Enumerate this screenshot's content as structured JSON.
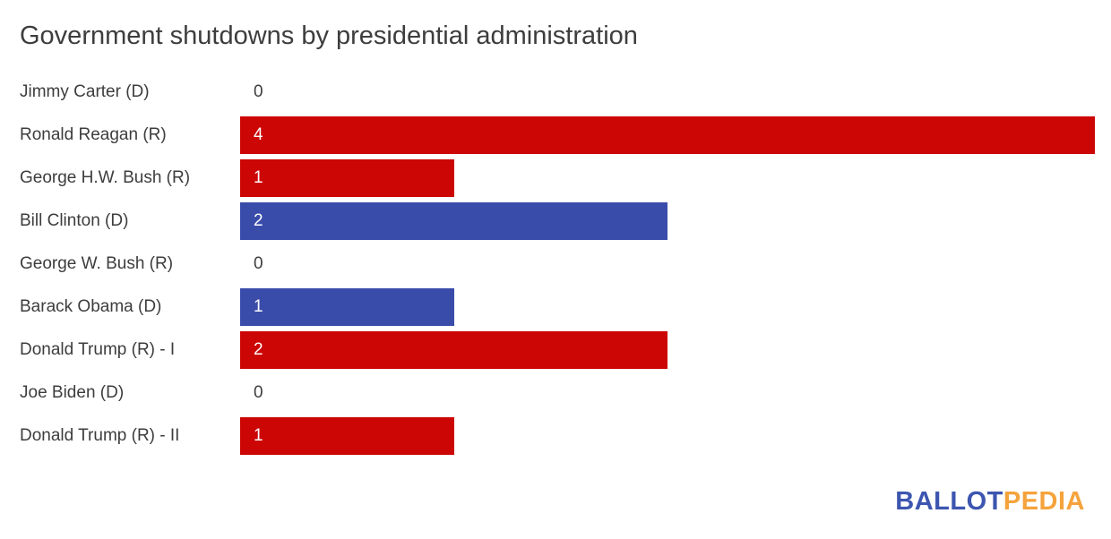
{
  "title": "Government shutdowns by presidential administration",
  "chart_data": {
    "type": "bar",
    "orientation": "horizontal",
    "title": "Government shutdowns by presidential administration",
    "categories": [
      "Jimmy Carter (D)",
      "Ronald Reagan (R)",
      "George H.W. Bush (R)",
      "Bill Clinton (D)",
      "George W. Bush (R)",
      "Barack Obama (D)",
      "Donald Trump (R) - I",
      "Joe Biden (D)",
      "Donald Trump (R) - II"
    ],
    "values": [
      0,
      4,
      1,
      2,
      0,
      1,
      2,
      0,
      1
    ],
    "parties": [
      "D",
      "R",
      "R",
      "D",
      "R",
      "D",
      "R",
      "D",
      "R"
    ],
    "xlim": [
      0,
      4
    ],
    "value_labels_shown": true,
    "grid": false,
    "legend": "none",
    "colors": {
      "R": "#cc0505",
      "D": "#3a4caa"
    },
    "text_color": "#3d3d3d",
    "background": "#ffffff"
  },
  "logo": {
    "part1": "BALLOT",
    "part2": "PEDIA",
    "color1": "#3c55b0",
    "color2": "#f5a33c"
  }
}
